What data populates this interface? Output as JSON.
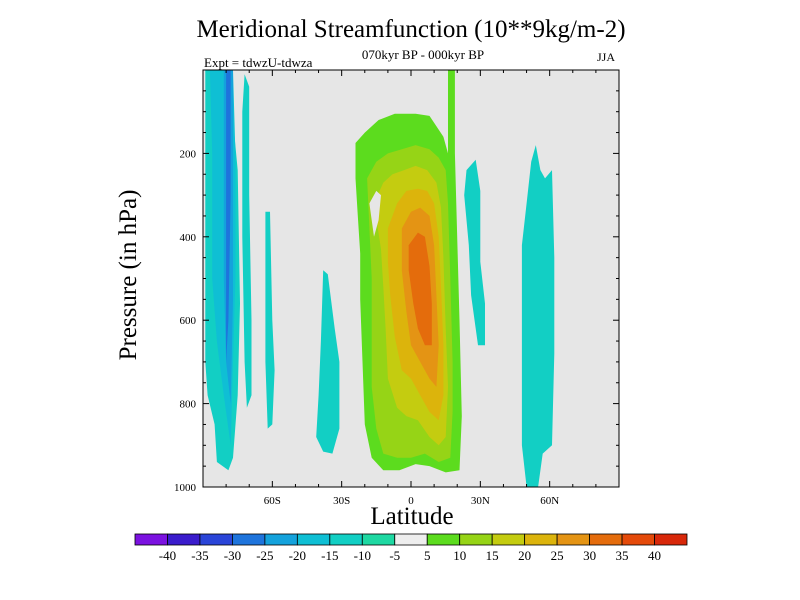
{
  "chart_data": {
    "type": "heatmap",
    "title": "Meridional Streamfunction (10**9kg/m-2)",
    "subtitle": "070kyr BP - 000kyr BP",
    "annotation_left": "Expt = tdwzU-tdwza",
    "annotation_right": "JJA",
    "xlabel": "Latitude",
    "ylabel": "Pressure (in hPa)",
    "xlim": [
      -90,
      90
    ],
    "ylim": [
      1000,
      0
    ],
    "x_ticks": [
      {
        "value": -60,
        "label": "60S"
      },
      {
        "value": -30,
        "label": "30S"
      },
      {
        "value": 0,
        "label": "0"
      },
      {
        "value": 30,
        "label": "30N"
      },
      {
        "value": 60,
        "label": "60N"
      }
    ],
    "y_ticks": [
      {
        "value": 200,
        "label": "200"
      },
      {
        "value": 400,
        "label": "400"
      },
      {
        "value": 600,
        "label": "600"
      },
      {
        "value": 800,
        "label": "800"
      },
      {
        "value": 1000,
        "label": "1000"
      }
    ],
    "background_color": "#e6e6e6",
    "colorbar": {
      "labels": [
        "-40",
        "-35",
        "-30",
        "-25",
        "-20",
        "-15",
        "-10",
        "-5",
        "5",
        "10",
        "15",
        "20",
        "25",
        "30",
        "35",
        "40"
      ],
      "colors": [
        "#7b12e0",
        "#3a1ccc",
        "#2a45d8",
        "#1e74dc",
        "#14a2dc",
        "#0fbfd4",
        "#12cfc4",
        "#1ed8a2",
        "#eeeeee",
        "#5cdc1e",
        "#96d416",
        "#c4cc10",
        "#dcb40c",
        "#e49414",
        "#e46c0c",
        "#e44a0a",
        "#d8280a"
      ]
    },
    "contours": [
      {
        "level": -10,
        "color": "#12cfc4",
        "points": [
          [
            -89,
            1
          ],
          [
            -77,
            1
          ],
          [
            -77,
            120
          ],
          [
            -75,
            240
          ],
          [
            -74,
            560
          ],
          [
            -75,
            780
          ],
          [
            -77,
            930
          ],
          [
            -79,
            960
          ],
          [
            -84,
            940
          ],
          [
            -85,
            850
          ],
          [
            -88,
            780
          ],
          [
            -89,
            700
          ]
        ]
      },
      {
        "level": -10,
        "color": "#12cfc4",
        "points": [
          [
            -72,
            10
          ],
          [
            -70,
            40
          ],
          [
            -70,
            300
          ],
          [
            -69,
            600
          ],
          [
            -69,
            780
          ],
          [
            -71,
            810
          ],
          [
            -72,
            700
          ],
          [
            -73,
            400
          ],
          [
            -73,
            100
          ]
        ]
      },
      {
        "level": -15,
        "color": "#0fbfd4",
        "points": [
          [
            -87,
            1
          ],
          [
            -77,
            1
          ],
          [
            -76,
            200
          ],
          [
            -76,
            500
          ],
          [
            -77,
            700
          ],
          [
            -78,
            900
          ],
          [
            -81,
            780
          ],
          [
            -84,
            650
          ],
          [
            -86,
            500
          ],
          [
            -86,
            200
          ]
        ]
      },
      {
        "level": -20,
        "color": "#14a2dc",
        "points": [
          [
            -81,
            1
          ],
          [
            -77,
            1
          ],
          [
            -77,
            250
          ],
          [
            -77,
            550
          ],
          [
            -78,
            800
          ],
          [
            -80,
            700
          ],
          [
            -81,
            500
          ],
          [
            -81,
            250
          ]
        ]
      },
      {
        "level": -25,
        "color": "#1e74dc",
        "points": [
          [
            -80,
            1
          ],
          [
            -78,
            1
          ],
          [
            -78,
            300
          ],
          [
            -79,
            600
          ],
          [
            -80,
            700
          ],
          [
            -80,
            400
          ]
        ]
      },
      {
        "level": -10,
        "color": "#12cfc4",
        "points": [
          [
            -63,
            340
          ],
          [
            -61,
            340
          ],
          [
            -60,
            600
          ],
          [
            -59,
            720
          ],
          [
            -60,
            850
          ],
          [
            -62,
            860
          ],
          [
            -63,
            700
          ],
          [
            -63,
            500
          ]
        ]
      },
      {
        "level": -10,
        "color": "#12cfc4",
        "points": [
          [
            -38,
            480
          ],
          [
            -36,
            490
          ],
          [
            -33,
            620
          ],
          [
            -31,
            700
          ],
          [
            -31,
            860
          ],
          [
            -34,
            920
          ],
          [
            -38,
            915
          ],
          [
            -41,
            880
          ],
          [
            -40,
            780
          ],
          [
            -39,
            650
          ]
        ]
      },
      {
        "level": -10,
        "color": "#12cfc4",
        "points": [
          [
            24,
            240
          ],
          [
            28,
            215
          ],
          [
            30,
            290
          ],
          [
            30,
            460
          ],
          [
            32,
            560
          ],
          [
            32,
            660
          ],
          [
            29,
            660
          ],
          [
            26,
            540
          ],
          [
            25,
            420
          ],
          [
            23,
            300
          ]
        ]
      },
      {
        "level": -10,
        "color": "#12cfc4",
        "points": [
          [
            54,
            180
          ],
          [
            56,
            240
          ],
          [
            58,
            260
          ],
          [
            61,
            240
          ],
          [
            62,
            450
          ],
          [
            62,
            680
          ],
          [
            61,
            900
          ],
          [
            57,
            920
          ],
          [
            55,
            1000
          ],
          [
            50,
            1000
          ],
          [
            48,
            900
          ],
          [
            48,
            600
          ],
          [
            48,
            420
          ],
          [
            50,
            320
          ],
          [
            52,
            220
          ]
        ]
      },
      {
        "level": 5,
        "color": "#5cdc1e",
        "points": [
          [
            -24,
            175
          ],
          [
            -20,
            150
          ],
          [
            -14,
            120
          ],
          [
            -7,
            105
          ],
          [
            2,
            105
          ],
          [
            8,
            110
          ],
          [
            14,
            160
          ],
          [
            16,
            200
          ],
          [
            16,
            1
          ],
          [
            19,
            1
          ],
          [
            19,
            200
          ],
          [
            21,
            600
          ],
          [
            22,
            830
          ],
          [
            21,
            960
          ],
          [
            15,
            965
          ],
          [
            8,
            950
          ],
          [
            2,
            945
          ],
          [
            -5,
            960
          ],
          [
            -12,
            960
          ],
          [
            -17,
            930
          ],
          [
            -20,
            850
          ],
          [
            -21,
            700
          ],
          [
            -22,
            550
          ],
          [
            -22,
            440
          ],
          [
            -23,
            350
          ],
          [
            -24,
            260
          ]
        ]
      },
      {
        "level": 10,
        "color": "#96d416",
        "points": [
          [
            -19,
            260
          ],
          [
            -15,
            220
          ],
          [
            -10,
            200
          ],
          [
            -4,
            190
          ],
          [
            2,
            180
          ],
          [
            8,
            190
          ],
          [
            12,
            210
          ],
          [
            15,
            240
          ],
          [
            16,
            320
          ],
          [
            17,
            500
          ],
          [
            18,
            700
          ],
          [
            18,
            820
          ],
          [
            17,
            930
          ],
          [
            12,
            940
          ],
          [
            6,
            920
          ],
          [
            0,
            930
          ],
          [
            -6,
            930
          ],
          [
            -12,
            920
          ],
          [
            -15,
            860
          ],
          [
            -17,
            760
          ],
          [
            -17,
            620
          ],
          [
            -17,
            500
          ],
          [
            -18,
            380
          ]
        ]
      },
      {
        "level": 15,
        "color": "#c4cc10",
        "points": [
          [
            -16,
            320
          ],
          [
            -12,
            270
          ],
          [
            -8,
            250
          ],
          [
            -3,
            240
          ],
          [
            2,
            230
          ],
          [
            7,
            240
          ],
          [
            11,
            270
          ],
          [
            13,
            330
          ],
          [
            14,
            450
          ],
          [
            15,
            620
          ],
          [
            16,
            760
          ],
          [
            15,
            880
          ],
          [
            12,
            900
          ],
          [
            8,
            880
          ],
          [
            3,
            840
          ],
          [
            -2,
            830
          ],
          [
            -6,
            810
          ],
          [
            -10,
            740
          ],
          [
            -11,
            620
          ],
          [
            -12,
            520
          ],
          [
            -13,
            430
          ]
        ]
      },
      {
        "level": 20,
        "color": "#dcb40c",
        "points": [
          [
            -10,
            380
          ],
          [
            -6,
            320
          ],
          [
            -2,
            290
          ],
          [
            3,
            285
          ],
          [
            7,
            290
          ],
          [
            10,
            320
          ],
          [
            12,
            400
          ],
          [
            13,
            520
          ],
          [
            14,
            660
          ],
          [
            14,
            780
          ],
          [
            12,
            840
          ],
          [
            8,
            820
          ],
          [
            4,
            780
          ],
          [
            0,
            740
          ],
          [
            -4,
            720
          ],
          [
            -7,
            640
          ],
          [
            -9,
            540
          ],
          [
            -10,
            460
          ]
        ]
      },
      {
        "level": 25,
        "color": "#e49414",
        "points": [
          [
            -4,
            380
          ],
          [
            0,
            340
          ],
          [
            4,
            330
          ],
          [
            8,
            350
          ],
          [
            10,
            420
          ],
          [
            11,
            540
          ],
          [
            12,
            660
          ],
          [
            11,
            760
          ],
          [
            8,
            740
          ],
          [
            4,
            700
          ],
          [
            0,
            660
          ],
          [
            -2,
            580
          ],
          [
            -4,
            480
          ]
        ]
      },
      {
        "level": 30,
        "color": "#e46c0c",
        "points": [
          [
            -1,
            420
          ],
          [
            3,
            390
          ],
          [
            6,
            400
          ],
          [
            8,
            470
          ],
          [
            9,
            560
          ],
          [
            9,
            660
          ],
          [
            6,
            660
          ],
          [
            3,
            620
          ],
          [
            1,
            560
          ],
          [
            -1,
            480
          ]
        ]
      },
      {
        "level": 0,
        "color": "#e6e6e6",
        "points": [
          [
            -18,
            320
          ],
          [
            -15,
            290
          ],
          [
            -13,
            300
          ],
          [
            -14,
            360
          ],
          [
            -16,
            400
          ],
          [
            -17,
            360
          ]
        ]
      }
    ]
  }
}
